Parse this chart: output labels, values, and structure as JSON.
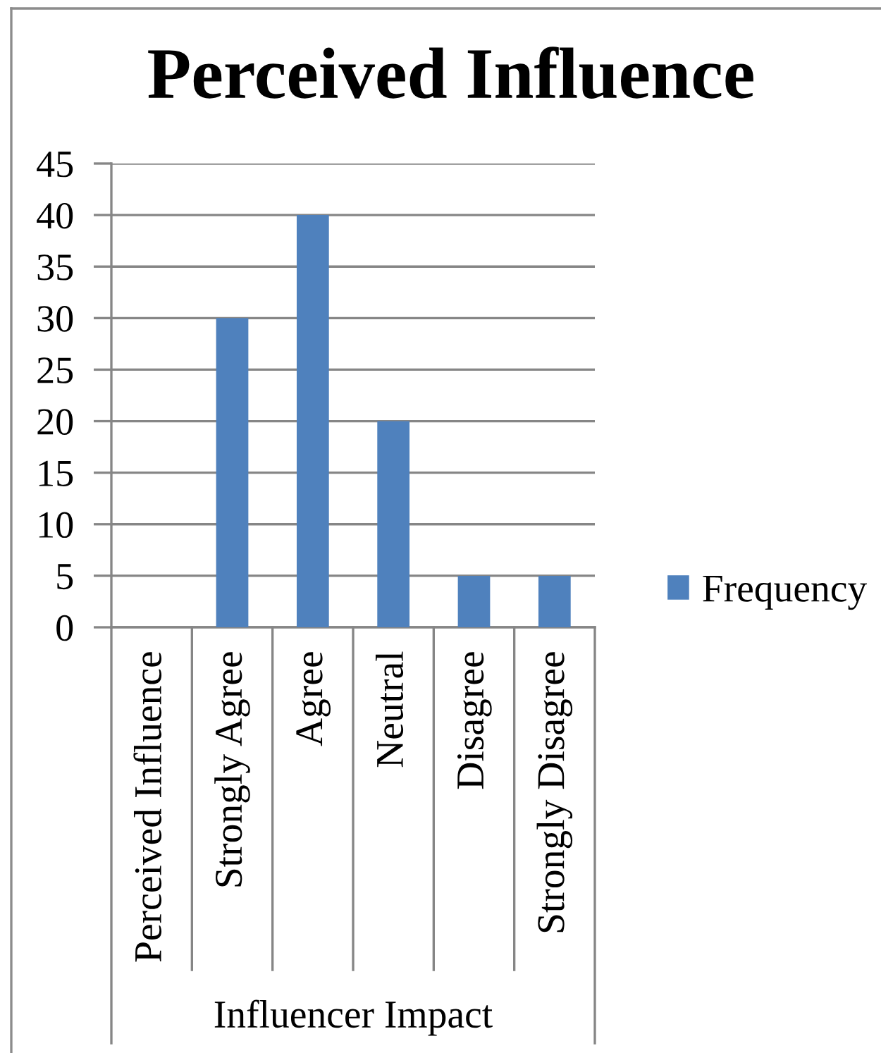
{
  "chart_data": {
    "type": "bar",
    "title": "Perceived Influence",
    "xlabel": "Influencer Impact",
    "categories": [
      "Perceived Influence",
      "Strongly Agree",
      "Agree",
      "Neutral",
      "Disagree",
      "Strongly Disagree"
    ],
    "series": [
      {
        "name": "Frequency",
        "color": "#4f81bd",
        "values": [
          null,
          30,
          40,
          20,
          5,
          5
        ]
      }
    ],
    "ylim": [
      0,
      45
    ],
    "yticks": [
      0,
      5,
      10,
      15,
      20,
      25,
      30,
      35,
      40,
      45
    ],
    "grid": "y",
    "legend": "right"
  }
}
